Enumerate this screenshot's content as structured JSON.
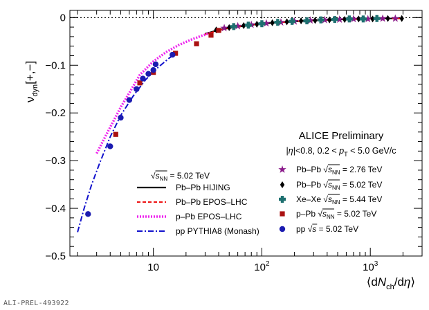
{
  "footer_id": "ALI-PREL-493922",
  "header": {
    "title": "ALICE Preliminary",
    "cuts": "|η|<0.8, 0.2 < p_T < 5.0 GeV/c"
  },
  "chart_data": {
    "type": "scatter",
    "title": "ALICE Preliminary",
    "xlabel": "⟨dN_ch/dη⟩",
    "ylabel": "ν_dyn[+,−]",
    "xscale": "log",
    "xlim": [
      1.7,
      3000
    ],
    "ylim": [
      -0.5,
      0.015
    ],
    "x_ticks": [
      {
        "value": 10,
        "label": "10"
      },
      {
        "value": 100,
        "label": "10^2"
      },
      {
        "value": 1000,
        "label": "10^3"
      }
    ],
    "y_ticks": [
      0,
      -0.1,
      -0.2,
      -0.3,
      -0.4,
      -0.5
    ],
    "y_tick_labels": [
      "0",
      "−0.1",
      "−0.2",
      "−0.3",
      "−0.4",
      "−0.5"
    ],
    "grid": false,
    "reference_line": {
      "y": 0,
      "style": "dotted"
    },
    "model_legend_header": "√s_NN = 5.02 TeV",
    "data_legend_position": "bottom-right",
    "model_legend_position": "bottom-center",
    "models": [
      {
        "name": "Pb–Pb HIJING",
        "color": "#000000",
        "dash": "solid",
        "x": [
          30,
          40,
          50,
          70,
          100,
          150,
          200,
          300,
          500,
          800,
          1200,
          1900
        ],
        "y": [
          -0.034,
          -0.026,
          -0.022,
          -0.017,
          -0.013,
          -0.01,
          -0.008,
          -0.006,
          -0.004,
          -0.003,
          -0.002,
          -0.002
        ]
      },
      {
        "name": "Pb–Pb EPOS–LHC",
        "color": "#ee1111",
        "dash": "dashed",
        "x": [
          30,
          40,
          50,
          70,
          100,
          150,
          200,
          300,
          500,
          800,
          1200,
          1900
        ],
        "y": [
          -0.035,
          -0.027,
          -0.022,
          -0.017,
          -0.013,
          -0.01,
          -0.008,
          -0.006,
          -0.004,
          -0.003,
          -0.002,
          -0.002
        ]
      },
      {
        "name": "p–Pb EPOS–LHC",
        "color": "#ee22ee",
        "dash": "dotted",
        "x": [
          3.0,
          3.5,
          4.0,
          5.0,
          6.0,
          7.5,
          10,
          13,
          17,
          22,
          28,
          34
        ],
        "y": [
          -0.285,
          -0.255,
          -0.23,
          -0.188,
          -0.158,
          -0.12,
          -0.092,
          -0.073,
          -0.058,
          -0.047,
          -0.038,
          -0.032
        ]
      },
      {
        "name": "pp PYTHIA8 (Monash)",
        "color": "#1010cc",
        "dash": "dashdot",
        "x": [
          2.0,
          2.3,
          2.7,
          3.2,
          4.0,
          5.0,
          6.5,
          8.5,
          11,
          14,
          16
        ],
        "y": [
          -0.45,
          -0.4,
          -0.35,
          -0.305,
          -0.25,
          -0.205,
          -0.165,
          -0.13,
          -0.105,
          -0.085,
          -0.076
        ]
      }
    ],
    "series": [
      {
        "name": "Pb–Pb √s_NN = 2.76 TeV",
        "marker": "star",
        "color": "#8a1a8a",
        "x": [
          45,
          60,
          80,
          110,
          150,
          200,
          280,
          380,
          520,
          700,
          950,
          1300,
          1700
        ],
        "y": [
          -0.022,
          -0.018,
          -0.015,
          -0.012,
          -0.01,
          -0.008,
          -0.006,
          -0.005,
          -0.004,
          -0.003,
          -0.003,
          -0.002,
          -0.002
        ]
      },
      {
        "name": "Pb–Pb √s_NN = 5.02 TeV",
        "marker": "diamond",
        "color": "#000000",
        "x": [
          38,
          50,
          68,
          90,
          125,
          170,
          230,
          310,
          420,
          580,
          780,
          1050,
          1450,
          1950
        ],
        "y": [
          -0.026,
          -0.021,
          -0.017,
          -0.014,
          -0.011,
          -0.009,
          -0.007,
          -0.006,
          -0.005,
          -0.004,
          -0.003,
          -0.003,
          -0.002,
          -0.002
        ]
      },
      {
        "name": "Xe–Xe √s_NN = 5.44 TeV",
        "marker": "cross",
        "color": "#1e7070",
        "x": [
          55,
          75,
          100,
          140,
          190,
          260,
          350,
          470,
          640,
          860,
          1150
        ],
        "y": [
          -0.019,
          -0.016,
          -0.013,
          -0.01,
          -0.008,
          -0.007,
          -0.005,
          -0.004,
          -0.003,
          -0.003,
          -0.002
        ]
      },
      {
        "name": "p–Pb √s_NN = 5.02 TeV",
        "marker": "square",
        "color": "#aa1111",
        "x": [
          4.5,
          7.5,
          10,
          16,
          25,
          34,
          40
        ],
        "y": [
          -0.245,
          -0.137,
          -0.115,
          -0.075,
          -0.055,
          -0.037,
          -0.027
        ]
      },
      {
        "name": "pp √s = 5.02 TeV",
        "marker": "circle",
        "color": "#1b1bb0",
        "x": [
          2.5,
          4.0,
          5.0,
          6.0,
          7.0,
          8.0,
          9.0,
          10.0,
          10.5,
          15.0
        ],
        "y": [
          -0.412,
          -0.27,
          -0.21,
          -0.173,
          -0.15,
          -0.128,
          -0.118,
          -0.11,
          -0.098,
          -0.078
        ]
      }
    ]
  }
}
